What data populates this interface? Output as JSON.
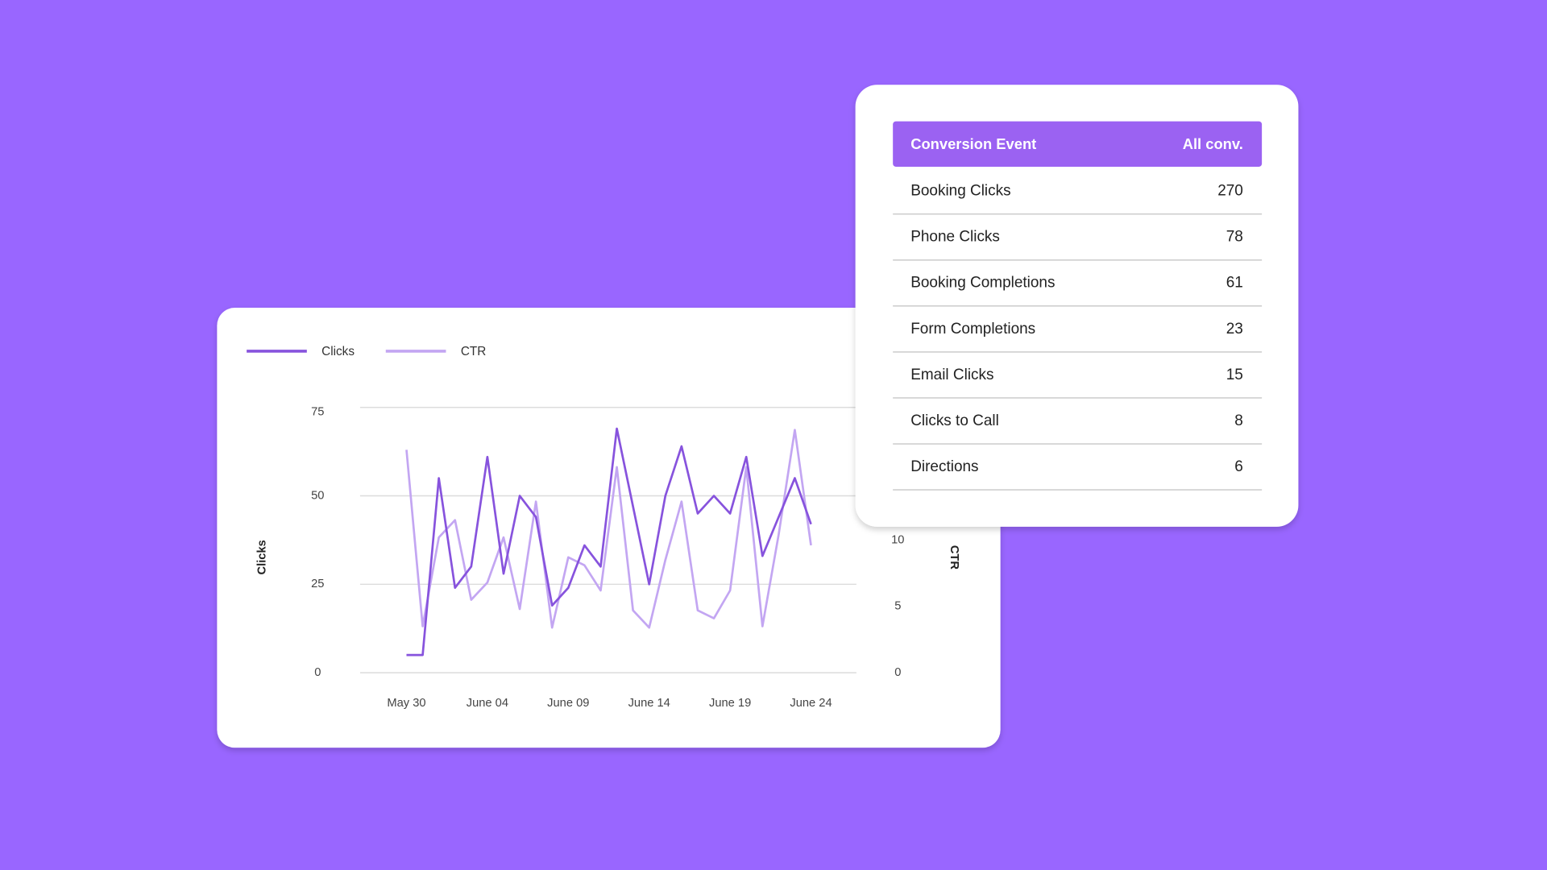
{
  "chart_data": {
    "type": "line",
    "categories": [
      "May 30",
      null,
      null,
      null,
      null,
      "June 04",
      null,
      null,
      null,
      null,
      "June 09",
      null,
      null,
      null,
      null,
      "June 14",
      null,
      null,
      null,
      null,
      "June 19",
      null,
      null,
      null,
      null,
      "June 24"
    ],
    "series": [
      {
        "name": "Clicks",
        "color": "#8753dd",
        "values": [
          5,
          5,
          55,
          24,
          30,
          61,
          28,
          50,
          44,
          19,
          24,
          36,
          30,
          69,
          47,
          25,
          50,
          64,
          45,
          50,
          45,
          61,
          33,
          44,
          55,
          42
        ]
      },
      {
        "name": "CTR",
        "color": "#c3a6f2",
        "axis": "y2",
        "values": [
          16.8,
          3.5,
          10.2,
          11.5,
          5.5,
          6.8,
          10.2,
          4.8,
          12.9,
          3.4,
          8.7,
          8.1,
          6.2,
          15.5,
          4.7,
          3.4,
          8.5,
          12.9,
          4.7,
          4.1,
          6.2,
          15.5,
          3.5,
          10.4,
          18.3,
          9.6
        ]
      }
    ],
    "ylabel": "Clicks",
    "y2label": "CTR",
    "ylim": [
      0,
      75
    ],
    "yticks": [
      0,
      25,
      50,
      75
    ],
    "y2lim": [
      0,
      20
    ],
    "y2ticks": [
      0,
      5,
      10
    ],
    "grid": true
  },
  "table": {
    "headers": [
      "Conversion Event",
      "All conv."
    ],
    "rows": [
      [
        "Booking Clicks",
        "270"
      ],
      [
        "Phone Clicks",
        "78"
      ],
      [
        "Booking Completions",
        "61"
      ],
      [
        "Form Completions",
        "23"
      ],
      [
        "Email Clicks",
        "15"
      ],
      [
        "Clicks to Call",
        "8"
      ],
      [
        "Directions",
        "6"
      ]
    ]
  }
}
